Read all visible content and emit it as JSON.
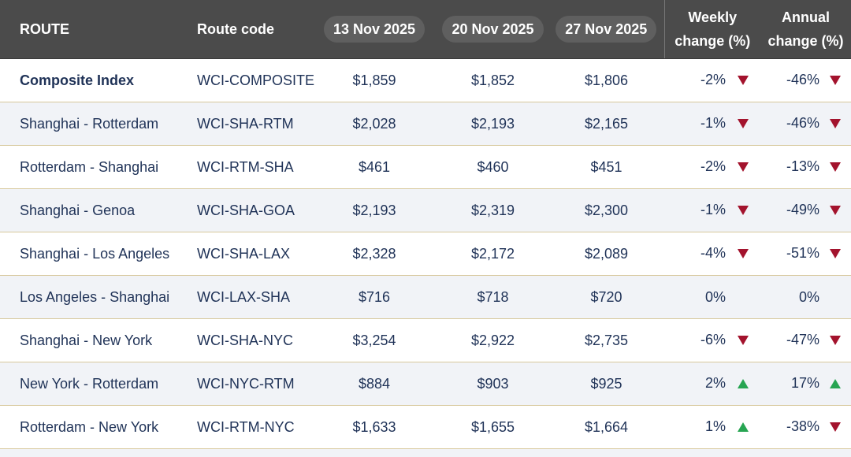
{
  "header": [
    "ROUTE",
    "Route code",
    "13 Nov 2025",
    "20 Nov 2025",
    "27 Nov 2025",
    "Weekly change (%)",
    "Annual change (%)"
  ],
  "rows": [
    [
      "Composite Index",
      "WCI-COMPOSITE",
      "$1,859",
      "$1,852",
      "$1,806",
      "-2%",
      "-46%"
    ],
    [
      "Shanghai - Rotterdam",
      "WCI-SHA-RTM",
      "$2,028",
      "$2,193",
      "$2,165",
      "-1%",
      "-46%"
    ],
    [
      "Rotterdam - Shanghai",
      "WCI-RTM-SHA",
      "$461",
      "$460",
      "$451",
      "-2%",
      "-13%"
    ],
    [
      "Shanghai - Genoa",
      "WCI-SHA-GOA",
      "$2,193",
      "$2,319",
      "$2,300",
      "-1%",
      "-49%"
    ],
    [
      "Shanghai - Los Angeles",
      "WCI-SHA-LAX",
      "$2,328",
      "$2,172",
      "$2,089",
      "-4%",
      "-51%"
    ],
    [
      "Los Angeles - Shanghai",
      "WCI-LAX-SHA",
      "$716",
      "$718",
      "$720",
      "0%",
      "0%"
    ],
    [
      "Shanghai - New York",
      "WCI-SHA-NYC",
      "$3,254",
      "$2,922",
      "$2,735",
      "-6%",
      "-47%"
    ],
    [
      "New York - Rotterdam",
      "WCI-NYC-RTM",
      "$884",
      "$903",
      "$925",
      "2%",
      "17%"
    ],
    [
      "Rotterdam - New York",
      "WCI-RTM-NYC",
      "$1,633",
      "$1,655",
      "$1,664",
      "1%",
      "-38%"
    ]
  ]
}
